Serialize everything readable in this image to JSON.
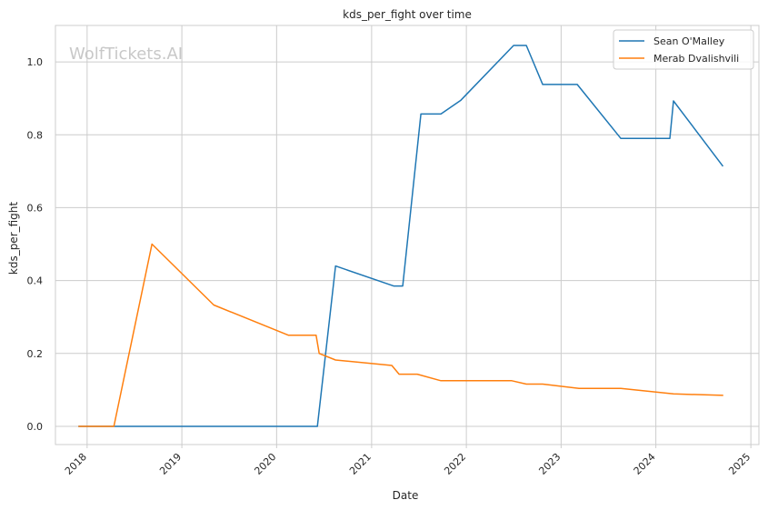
{
  "chart_data": {
    "type": "line",
    "title": "kds_per_fight over time",
    "xlabel": "Date",
    "ylabel": "kds_per_fight",
    "watermark": "WolfTickets.AI",
    "xlim": [
      "2017-09-01",
      "2025-02-01"
    ],
    "ylim": [
      -0.05,
      1.1
    ],
    "x_ticks": [
      {
        "date": "2018-01-01",
        "label": "2018"
      },
      {
        "date": "2019-01-01",
        "label": "2019"
      },
      {
        "date": "2020-01-01",
        "label": "2020"
      },
      {
        "date": "2021-01-01",
        "label": "2021"
      },
      {
        "date": "2022-01-01",
        "label": "2022"
      },
      {
        "date": "2023-01-01",
        "label": "2023"
      },
      {
        "date": "2024-01-01",
        "label": "2024"
      },
      {
        "date": "2025-01-01",
        "label": "2025"
      }
    ],
    "y_ticks": [
      0.0,
      0.2,
      0.4,
      0.6,
      0.8,
      1.0
    ],
    "y_tick_labels": [
      "0.0",
      "0.2",
      "0.4",
      "0.6",
      "0.8",
      "1.0"
    ],
    "grid": true,
    "legend_position": "top-right",
    "series": [
      {
        "name": "Sean O'Malley",
        "color": "#1f77b4",
        "points": [
          {
            "x": "2017-12-01",
            "y": 0.0
          },
          {
            "x": "2018-03-01",
            "y": 0.0
          },
          {
            "x": "2020-06-06",
            "y": 0.0
          },
          {
            "x": "2020-08-15",
            "y": 0.44
          },
          {
            "x": "2021-03-27",
            "y": 0.385
          },
          {
            "x": "2021-05-01",
            "y": 0.385
          },
          {
            "x": "2021-07-10",
            "y": 0.857
          },
          {
            "x": "2021-09-25",
            "y": 0.857
          },
          {
            "x": "2021-12-11",
            "y": 0.895
          },
          {
            "x": "2022-07-02",
            "y": 1.045
          },
          {
            "x": "2022-08-20",
            "y": 1.045
          },
          {
            "x": "2022-10-22",
            "y": 0.938
          },
          {
            "x": "2023-03-04",
            "y": 0.938
          },
          {
            "x": "2023-08-19",
            "y": 0.79
          },
          {
            "x": "2024-02-24",
            "y": 0.79
          },
          {
            "x": "2024-03-09",
            "y": 0.893
          },
          {
            "x": "2024-09-14",
            "y": 0.715
          }
        ]
      },
      {
        "name": "Merab Dvalishvili",
        "color": "#ff7f0e",
        "points": [
          {
            "x": "2017-12-01",
            "y": 0.0
          },
          {
            "x": "2018-04-14",
            "y": 0.0
          },
          {
            "x": "2018-09-08",
            "y": 0.5
          },
          {
            "x": "2019-05-04",
            "y": 0.333
          },
          {
            "x": "2020-02-15",
            "y": 0.25
          },
          {
            "x": "2020-06-01",
            "y": 0.25
          },
          {
            "x": "2020-06-13",
            "y": 0.2
          },
          {
            "x": "2020-08-15",
            "y": 0.182
          },
          {
            "x": "2021-03-20",
            "y": 0.167
          },
          {
            "x": "2021-04-17",
            "y": 0.143
          },
          {
            "x": "2021-06-26",
            "y": 0.143
          },
          {
            "x": "2021-09-25",
            "y": 0.125
          },
          {
            "x": "2022-06-25",
            "y": 0.125
          },
          {
            "x": "2022-08-20",
            "y": 0.116
          },
          {
            "x": "2022-10-22",
            "y": 0.116
          },
          {
            "x": "2023-03-11",
            "y": 0.104
          },
          {
            "x": "2023-08-19",
            "y": 0.104
          },
          {
            "x": "2024-03-09",
            "y": 0.089
          },
          {
            "x": "2024-09-14",
            "y": 0.085
          }
        ]
      }
    ]
  }
}
